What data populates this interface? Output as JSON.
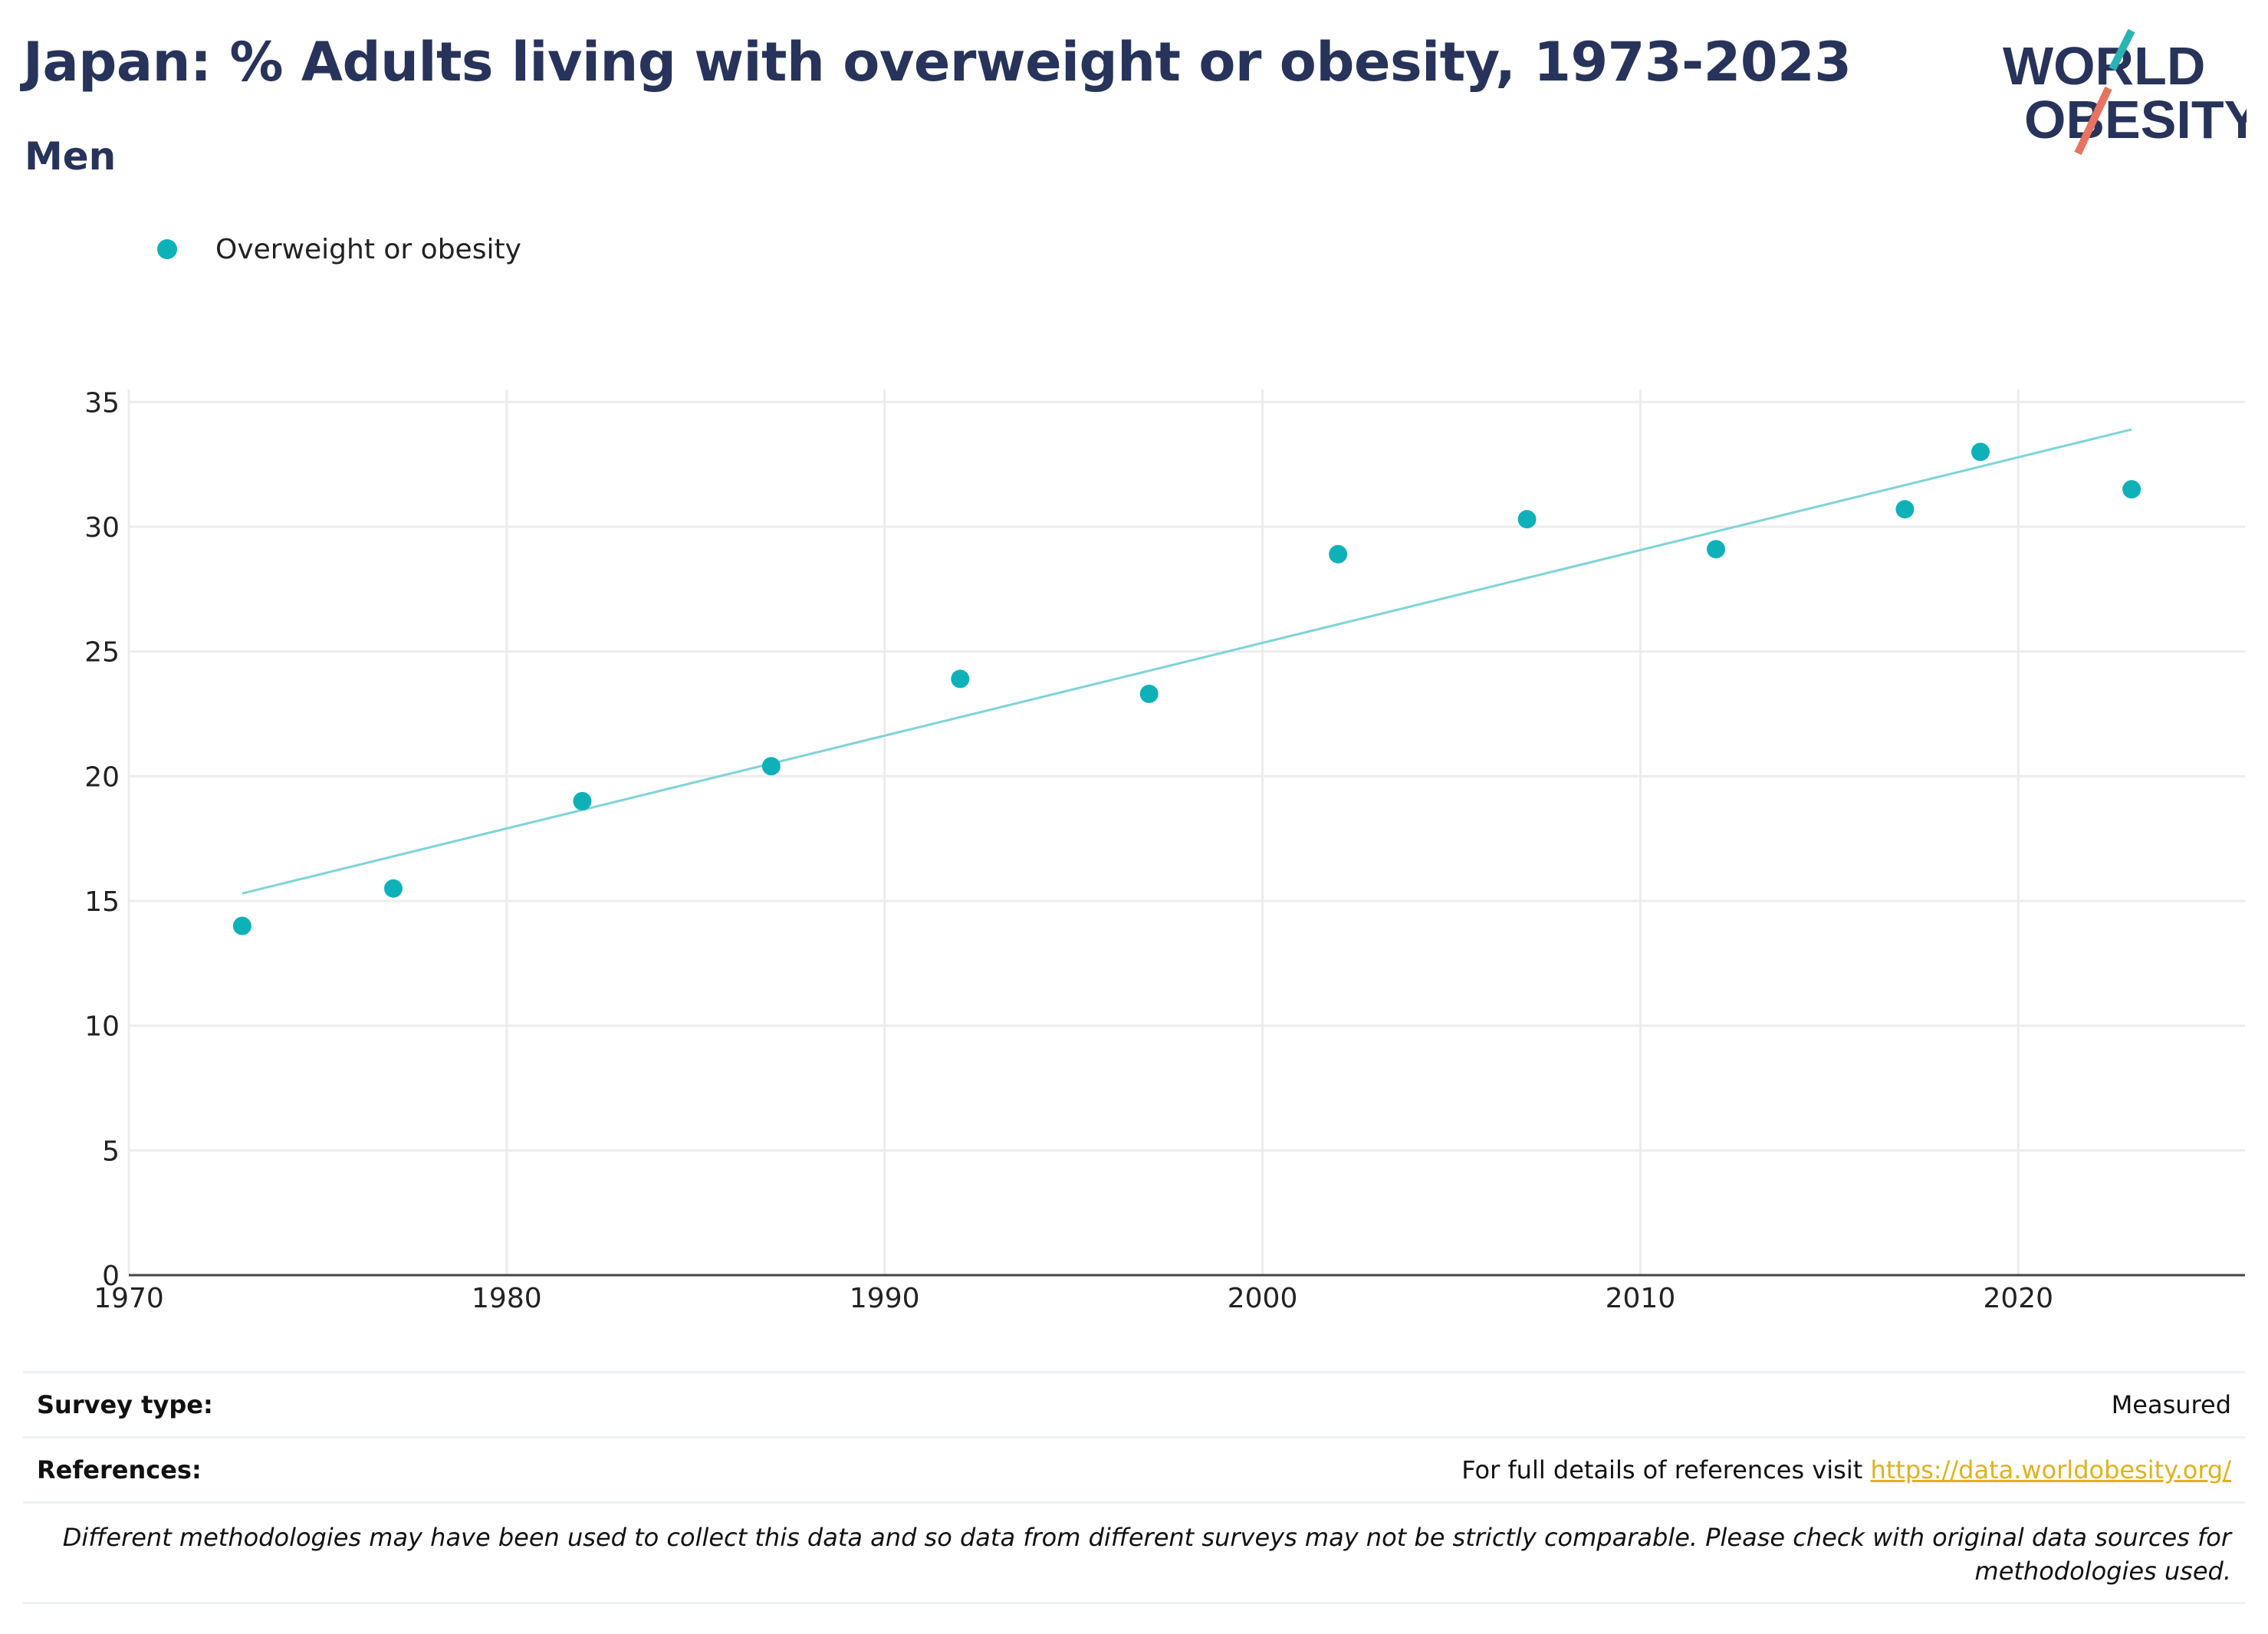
{
  "title": "Japan: % Adults living with overweight or obesity, 1973-2023",
  "subtitle": "Men",
  "logo": {
    "line1": "WORLD",
    "line2": "OBESITY",
    "accent_teal": "#2ab3b5",
    "accent_coral": "#e8735e",
    "text_color": "#27335a"
  },
  "legend": [
    {
      "label": "Overweight or obesity",
      "color": "#0fb1b8"
    }
  ],
  "footer": {
    "survey_type_label": "Survey type:",
    "survey_type_value": "Measured",
    "references_label": "References:",
    "references_text": "For full details of references visit ",
    "references_link": "https://data.worldobesity.org/",
    "link_color": "#e0b21e",
    "note": "Different methodologies may have been used to collect this data and so data from different surveys may not be strictly comparable. Please check with original data sources for methodologies used."
  },
  "chart_data": {
    "type": "scatter",
    "x": [
      1973,
      1977,
      1982,
      1987,
      1992,
      1997,
      2002,
      2007,
      2012,
      2017,
      2019,
      2023
    ],
    "series": [
      {
        "name": "Overweight or obesity",
        "values": [
          14.0,
          15.5,
          19.0,
          20.4,
          23.9,
          23.3,
          28.9,
          30.3,
          29.1,
          30.7,
          33.0,
          31.5
        ],
        "color": "#0fb1b8"
      }
    ],
    "trendline": {
      "x": [
        1973,
        2023
      ],
      "y": [
        15.3,
        33.9
      ],
      "color": "#7fd4d8"
    },
    "xlim": [
      1970,
      2026
    ],
    "ylim": [
      0,
      35.5
    ],
    "xticks": [
      1970,
      1980,
      1990,
      2000,
      2010,
      2020
    ],
    "yticks": [
      0,
      5,
      10,
      15,
      20,
      25,
      30,
      35
    ],
    "grid": true,
    "legend_position": "top-left"
  }
}
